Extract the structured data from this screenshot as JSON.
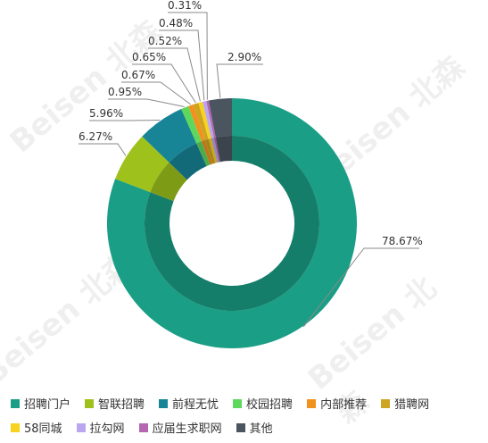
{
  "watermark_text": "Beisen 北森",
  "chart_data": {
    "type": "pie",
    "style": "donut",
    "title": "",
    "labels": [
      "招聘门户",
      "智联招聘",
      "前程无忧",
      "校园招聘",
      "内部推荐",
      "猎聘网",
      "58同城",
      "拉勾网",
      "应届生求职网",
      "其他"
    ],
    "values": [
      78.67,
      6.27,
      5.96,
      0.95,
      0.67,
      0.65,
      0.52,
      0.48,
      0.31,
      2.9
    ],
    "value_labels": [
      "78.67%",
      "6.27%",
      "5.96%",
      "0.95%",
      "0.67%",
      "0.65%",
      "0.52%",
      "0.48%",
      "0.31%",
      "2.90%"
    ],
    "colors": [
      "#1a9e85",
      "#9ec21b",
      "#178596",
      "#5ed85c",
      "#f0921e",
      "#cda521",
      "#f7d21e",
      "#b9a6ee",
      "#b466b0",
      "#4a5560"
    ],
    "legend_position": "bottom"
  }
}
